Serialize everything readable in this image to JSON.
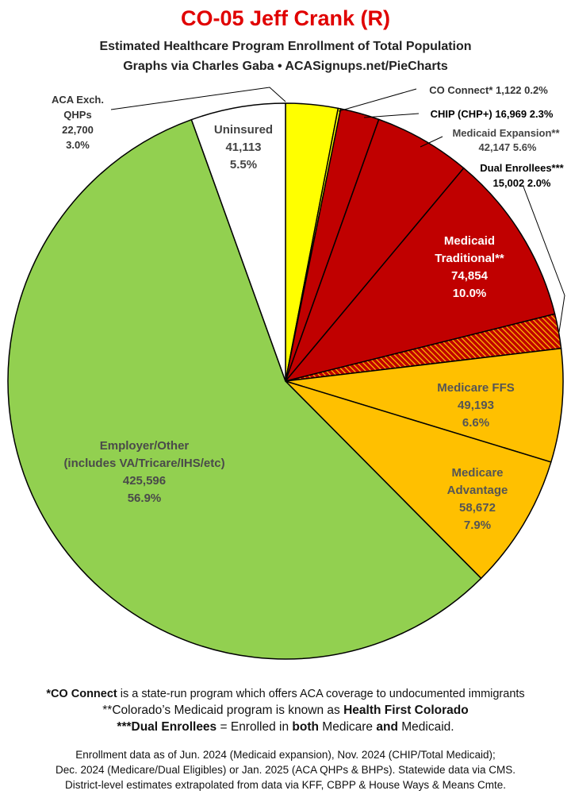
{
  "title": "CO-05 Jeff Crank (R)",
  "subtitle": "Estimated Healthcare Program Enrollment of Total Population",
  "credit": "Graphs via Charles Gaba  •  ACASignups.net/PieCharts",
  "chart_data": {
    "type": "pie",
    "start": "12 o'clock",
    "direction": "clockwise",
    "slices": [
      {
        "label": "ACA Exch. QHPs",
        "value": 22700,
        "percent": "3.0%",
        "value_text": "22,700",
        "color": "#ffff00"
      },
      {
        "label": "CO Connect*",
        "value": 1122,
        "percent": "0.2%",
        "value_text": "1,122",
        "color": "#ffff00"
      },
      {
        "label": "CHIP (CHP+)",
        "value": 16969,
        "percent": "2.3%",
        "value_text": "16,969",
        "color": "#c00000"
      },
      {
        "label": "Medicaid Expansion**",
        "value": 42147,
        "percent": "5.6%",
        "value_text": "42,147",
        "color": "#c00000"
      },
      {
        "label": "Medicaid Traditional**",
        "value": 74854,
        "percent": "10.0%",
        "value_text": "74,854",
        "color": "#c00000"
      },
      {
        "label": "Dual Enrollees***",
        "value": 15002,
        "percent": "2.0%",
        "value_text": "15,002",
        "color": "#c00000",
        "pattern": "hatched"
      },
      {
        "label": "Medicare FFS",
        "value": 49193,
        "percent": "6.6%",
        "value_text": "49,193",
        "color": "#ffc000"
      },
      {
        "label": "Medicare Advantage",
        "value": 58672,
        "percent": "7.9%",
        "value_text": "58,672",
        "color": "#ffc000"
      },
      {
        "label": "Employer/Other (includes VA/Tricare/IHS/etc)",
        "value": 425596,
        "percent": "56.9%",
        "value_text": "425,596",
        "color": "#92d050"
      },
      {
        "label": "Uninsured",
        "value": 41113,
        "percent": "5.5%",
        "value_text": "41,113",
        "color": "#ffffff"
      }
    ]
  },
  "labels": {
    "aca": {
      "l1": "ACA Exch.",
      "l2": "QHPs",
      "l3": "22,700",
      "l4": "3.0%"
    },
    "coconnect": {
      "l1": "CO Connect* 1,122 0.2%"
    },
    "chip": {
      "l1": "CHIP (CHP+) 16,969 2.3%"
    },
    "medexp": {
      "l1": "Medicaid Expansion**",
      "l2": "42,147 5.6%"
    },
    "dual": {
      "l1": "Dual Enrollees***",
      "l2": "15,002 2.0%"
    },
    "medtrad": {
      "l1": "Medicaid",
      "l2": "Traditional**",
      "l3": "74,854",
      "l4": "10.0%"
    },
    "medffs": {
      "l1": "Medicare FFS",
      "l2": "49,193",
      "l3": "6.6%"
    },
    "medadv": {
      "l1": "Medicare",
      "l2": "Advantage",
      "l3": "58,672",
      "l4": "7.9%"
    },
    "employer": {
      "l1": "Employer/Other",
      "l2": "(includes VA/Tricare/IHS/etc)",
      "l3": "425,596",
      "l4": "56.9%"
    },
    "uninsured": {
      "l1": "Uninsured",
      "l2": "41,113",
      "l3": "5.5%"
    }
  },
  "footnotes": {
    "n1_bold": "*CO Connect",
    "n1_rest": " is a state-run program which offers ACA coverage to undocumented immigrants",
    "n2_a": "**Colorado’s Medicaid program is known as ",
    "n2_b": "Health First Colorado",
    "n3_a": "***Dual Enrollees",
    "n3_b": " = Enrolled in ",
    "n3_c": "both",
    "n3_d": " Medicare ",
    "n3_e": "and",
    "n3_f": " Medicaid.",
    "src1": "Enrollment data as of Jun. 2024 (Medicaid expansion), Nov. 2024 (CHIP/Total Medicaid);",
    "src2": "Dec. 2024 (Medicare/Dual Eligibles) or Jan. 2025 (ACA QHPs & BHPs). Statewide data via CMS.",
    "src3": "District-level estimates extrapolated from data via KFF, CBPP & House Ways & Means Cmte."
  }
}
